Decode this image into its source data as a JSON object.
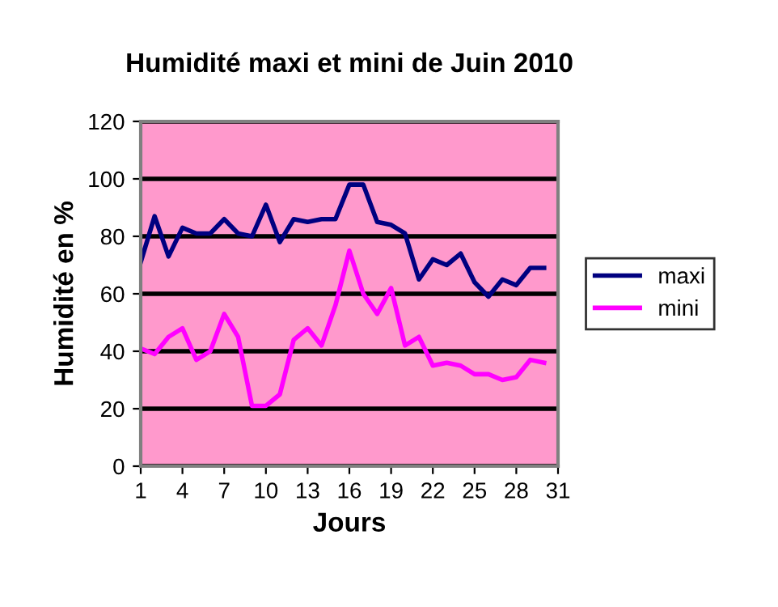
{
  "chart_data": {
    "type": "line",
    "title": "Humidité maxi et mini de Juin 2010",
    "xlabel": "Jours",
    "ylabel": "Humidité en %",
    "x": [
      1,
      2,
      3,
      4,
      5,
      6,
      7,
      8,
      9,
      10,
      11,
      12,
      13,
      14,
      15,
      16,
      17,
      18,
      19,
      20,
      21,
      22,
      23,
      24,
      25,
      26,
      27,
      28,
      29,
      30
    ],
    "series": [
      {
        "name": "maxi",
        "color": "#000080",
        "values": [
          71,
          87,
          73,
          83,
          81,
          81,
          86,
          81,
          80,
          91,
          78,
          86,
          85,
          86,
          86,
          98,
          98,
          85,
          84,
          81,
          65,
          72,
          70,
          74,
          64,
          59,
          65,
          63,
          69,
          69
        ]
      },
      {
        "name": "mini",
        "color": "#ff00ff",
        "values": [
          41,
          39,
          45,
          48,
          37,
          40,
          53,
          45,
          21,
          21,
          25,
          44,
          48,
          42,
          56,
          75,
          60,
          53,
          62,
          42,
          45,
          35,
          36,
          35,
          32,
          32,
          30,
          31,
          37,
          36
        ]
      }
    ],
    "xlim": [
      1,
      31
    ],
    "xticks": [
      1,
      4,
      7,
      10,
      13,
      16,
      19,
      22,
      25,
      28,
      31
    ],
    "ylim": [
      0,
      120
    ],
    "yticks": [
      0,
      20,
      40,
      60,
      80,
      100,
      120
    ],
    "grid": "y",
    "legend": "right",
    "marker": "none",
    "line_style": "solid"
  }
}
